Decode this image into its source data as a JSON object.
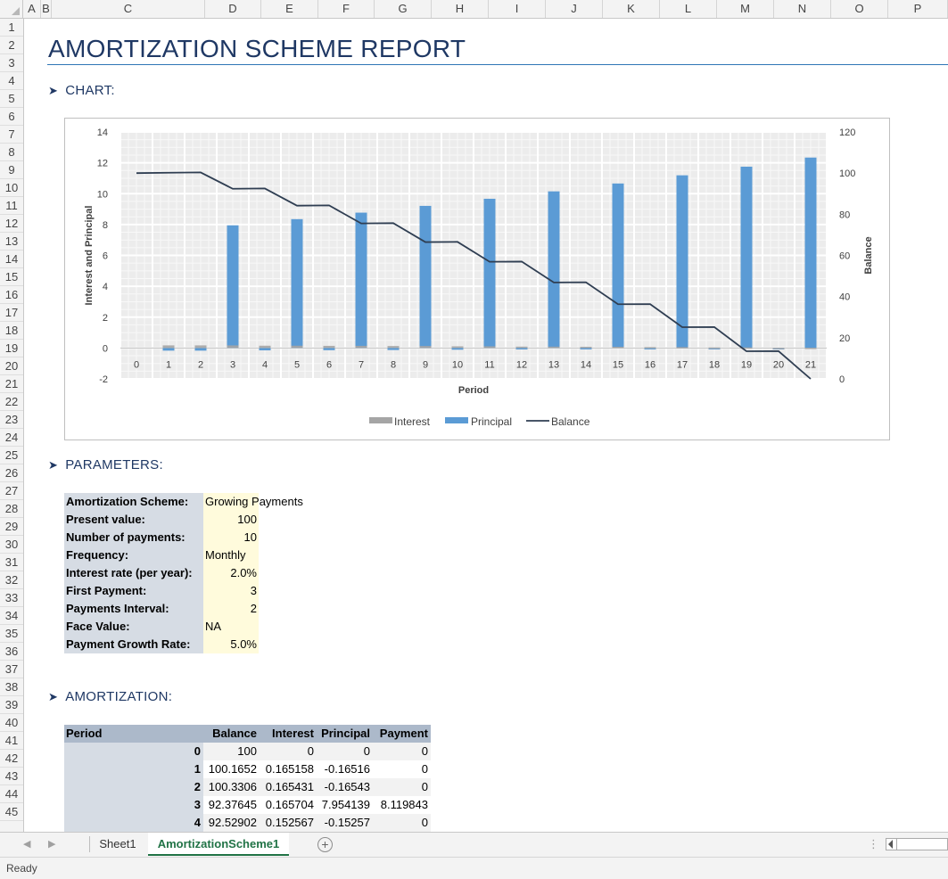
{
  "columns": [
    "A",
    "B",
    "C",
    "D",
    "E",
    "F",
    "G",
    "H",
    "I",
    "J",
    "K",
    "L",
    "M",
    "N",
    "O",
    "P"
  ],
  "rows": [
    "1",
    "2",
    "3",
    "4",
    "5",
    "6",
    "7",
    "8",
    "9",
    "10",
    "11",
    "12",
    "13",
    "14",
    "15",
    "16",
    "17",
    "18",
    "19",
    "20",
    "21",
    "22",
    "23",
    "24",
    "25",
    "26",
    "27",
    "28",
    "29",
    "30",
    "31",
    "32",
    "33",
    "34",
    "35",
    "36",
    "37",
    "38",
    "39",
    "40",
    "41",
    "42",
    "43",
    "44",
    "45"
  ],
  "report": {
    "title": "AMORTIZATION SCHEME REPORT",
    "sections": {
      "chart": "CHART:",
      "parameters": "PARAMETERS:",
      "amortization": "AMORTIZATION:"
    }
  },
  "parameters": [
    {
      "label": "Amortization Scheme:",
      "value": "Growing Payments",
      "align": "left"
    },
    {
      "label": "Present value:",
      "value": "100",
      "align": "right"
    },
    {
      "label": "Number of payments:",
      "value": "10",
      "align": "right"
    },
    {
      "label": "Frequency:",
      "value": "Monthly",
      "align": "left"
    },
    {
      "label": "Interest rate (per year):",
      "value": "2.0%",
      "align": "right"
    },
    {
      "label": "First Payment:",
      "value": "3",
      "align": "right"
    },
    {
      "label": "Payments Interval:",
      "value": "2",
      "align": "right"
    },
    {
      "label": "Face Value:",
      "value": "NA",
      "align": "left"
    },
    {
      "label": "Payment Growth Rate:",
      "value": "5.0%",
      "align": "right"
    }
  ],
  "amortization": {
    "headers": [
      "Period",
      "Balance",
      "Interest",
      "Principal",
      "Payment"
    ],
    "rows": [
      [
        "0",
        "100",
        "0",
        "0",
        "0"
      ],
      [
        "1",
        "100.1652",
        "0.165158",
        "-0.16516",
        "0"
      ],
      [
        "2",
        "100.3306",
        "0.165431",
        "-0.16543",
        "0"
      ],
      [
        "3",
        "92.37645",
        "0.165704",
        "7.954139",
        "8.119843"
      ],
      [
        "4",
        "92.52902",
        "0.152567",
        "-0.15257",
        "0"
      ]
    ]
  },
  "chart_data": {
    "type": "bar",
    "xlabel": "Period",
    "ylabel": "Interest and Principal",
    "y2label": "Balance",
    "categories": [
      "0",
      "1",
      "2",
      "3",
      "4",
      "5",
      "6",
      "7",
      "8",
      "9",
      "10",
      "11",
      "12",
      "13",
      "14",
      "15",
      "16",
      "17",
      "18",
      "19",
      "20",
      "21"
    ],
    "ylim": [
      -2,
      14
    ],
    "yticks": [
      "-2",
      "0",
      "2",
      "4",
      "6",
      "8",
      "10",
      "12",
      "14"
    ],
    "y2lim": [
      0,
      120
    ],
    "y2ticks": [
      "0",
      "20",
      "40",
      "60",
      "80",
      "100",
      "120"
    ],
    "grid": true,
    "legend_position": "bottom",
    "series": [
      {
        "name": "Interest",
        "type": "bar",
        "color": "#a5a5a5",
        "values": [
          0,
          0.17,
          0.17,
          0.17,
          0.15,
          0.15,
          0.14,
          0.14,
          0.13,
          0.13,
          0.11,
          0.11,
          0.09,
          0.09,
          0.08,
          0.08,
          0.06,
          0.06,
          0.04,
          0.04,
          0.02,
          0.02
        ]
      },
      {
        "name": "Principal",
        "type": "bar",
        "color": "#5b9bd5",
        "values": [
          0,
          -0.17,
          -0.17,
          7.95,
          -0.15,
          8.35,
          -0.14,
          8.77,
          -0.13,
          9.21,
          -0.11,
          9.67,
          -0.09,
          10.15,
          -0.08,
          10.66,
          -0.06,
          11.19,
          -0.04,
          11.75,
          -0.02,
          12.34
        ]
      },
      {
        "name": "Balance",
        "type": "line",
        "color": "#2f3e52",
        "axis": "secondary",
        "values": [
          100,
          100.17,
          100.33,
          92.38,
          92.53,
          84.18,
          84.32,
          75.55,
          75.68,
          66.47,
          66.58,
          56.91,
          57.0,
          46.85,
          46.93,
          36.27,
          36.33,
          25.14,
          25.18,
          13.43,
          13.45,
          1.11
        ]
      }
    ]
  },
  "sheet_tabs": [
    {
      "label": "Sheet1",
      "active": false
    },
    {
      "label": "AmortizationScheme1",
      "active": true
    }
  ],
  "status": {
    "text": "Ready"
  },
  "colors": {
    "title": "#1f3864",
    "active_tab": "#217346",
    "label_bg": "#d6dce4",
    "value_bg": "#fffbdc",
    "header_bg": "#acb9ca"
  }
}
